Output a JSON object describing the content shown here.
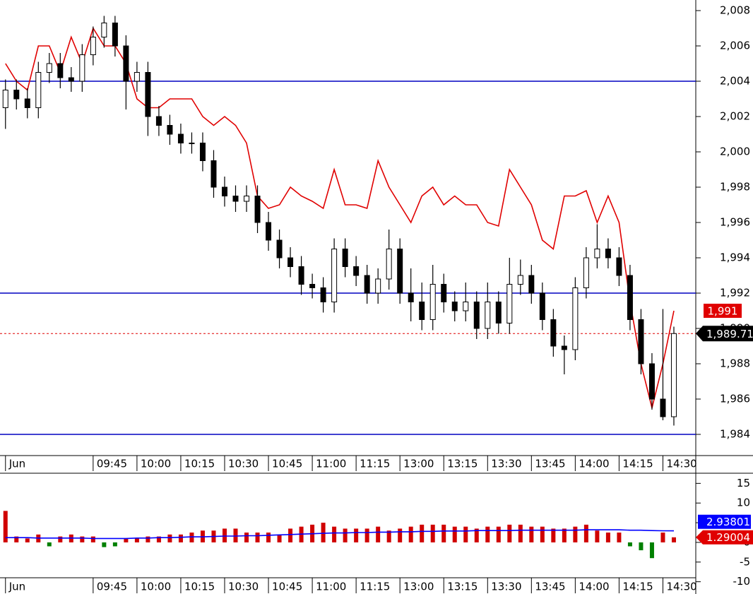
{
  "chart_data": [
    {
      "type": "candlestick",
      "categories": [
        "Jun",
        null,
        null,
        null,
        null,
        null,
        null,
        null,
        "09:45",
        null,
        null,
        null,
        "10:00",
        null,
        null,
        null,
        "10:15",
        null,
        null,
        null,
        "10:30",
        null,
        null,
        null,
        "10:45",
        null,
        null,
        null,
        "11:00",
        null,
        null,
        null,
        "11:15",
        null,
        null,
        null,
        "13:00",
        null,
        null,
        null,
        "13:15",
        null,
        null,
        null,
        "13:30",
        null,
        null,
        null,
        "13:45",
        null,
        null,
        null,
        "14:00",
        null,
        null,
        null,
        "14:15",
        null,
        null,
        null,
        "14:30",
        null
      ],
      "open": [
        2002.5,
        2003.5,
        2003,
        2002.5,
        2004.5,
        2005,
        2004.2,
        2004,
        2005.5,
        2006.5,
        2007.3,
        2006,
        2004,
        2004.5,
        2002,
        2001.5,
        2001,
        2000.5,
        2000.5,
        1999.5,
        1998,
        1997.5,
        1997.2,
        1997.5,
        1996,
        1995,
        1994,
        1993.5,
        1992.5,
        1992.3,
        1991.5,
        1994.5,
        1993.5,
        1993,
        1992,
        1992.8,
        1994.5,
        1992,
        1991.5,
        1990.5,
        1992.5,
        1991.5,
        1991,
        1991.5,
        1990,
        1991.5,
        1990.3,
        1992.5,
        1993,
        1992,
        1990.5,
        1989,
        1988.8,
        1992.3,
        1994,
        1994.5,
        1994,
        1993,
        1990.5,
        1988,
        1986,
        1985
      ],
      "high": [
        2004.1,
        2004.1,
        2003.6,
        2005.1,
        2005.6,
        2005.6,
        2004.8,
        2006.1,
        2007.1,
        2007.7,
        2007.7,
        2006.6,
        2005.1,
        2005.1,
        2002.6,
        2002.1,
        2001.6,
        2001.1,
        2001.1,
        2000.1,
        1998.6,
        1998.1,
        1998.1,
        1998.1,
        1996.6,
        1995.6,
        1994.6,
        1994.1,
        1993.1,
        1992.9,
        1995.1,
        1995.1,
        1994.1,
        1993.6,
        1993.4,
        1995.6,
        1995.1,
        1993.4,
        1992.6,
        1993.6,
        1993.1,
        1992.1,
        1992.6,
        1992.1,
        1992.6,
        1992.1,
        1994,
        1993.9,
        1993.6,
        1992.6,
        1991.1,
        1989.6,
        1992.9,
        1994.6,
        1995.9,
        1995.1,
        1994.6,
        1993.6,
        1991.1,
        1988.6,
        1991.1,
        1990.1
      ],
      "low": [
        2001.3,
        2002.4,
        2001.9,
        2001.9,
        2003.9,
        2003.6,
        2003.4,
        2003.4,
        2004.9,
        2005.9,
        2005.4,
        2002.4,
        2003.4,
        2000.9,
        2000.9,
        2000.4,
        1999.9,
        1999.9,
        1998.9,
        1997.4,
        1996.9,
        1996.6,
        1996.6,
        1995.4,
        1994.4,
        1993.4,
        1992.9,
        1991.9,
        1991.7,
        1990.9,
        1990.9,
        1992.9,
        1992.4,
        1991.4,
        1991.4,
        1992.2,
        1991.4,
        1990.4,
        1989.9,
        1989.9,
        1990.9,
        1990.4,
        1990.4,
        1989.4,
        1989.4,
        1989.7,
        1989.7,
        1991.9,
        1991.4,
        1989.9,
        1988.4,
        1987.4,
        1988.2,
        1991.7,
        1993.4,
        1993.4,
        1992.4,
        1989.9,
        1987.4,
        1985.4,
        1984.8,
        1984.5
      ],
      "close": [
        2003.5,
        2003,
        2002.5,
        2004.5,
        2005,
        2004.2,
        2004,
        2005.5,
        2006.5,
        2007.3,
        2006,
        2004,
        2004.5,
        2002,
        2001.5,
        2001,
        2000.5,
        2000.5,
        1999.5,
        1998,
        1997.5,
        1997.2,
        1997.5,
        1996,
        1995,
        1994,
        1993.5,
        1992.5,
        1992.3,
        1991.5,
        1994.5,
        1993.5,
        1993,
        1992,
        1992.8,
        1994.5,
        1992,
        1991.5,
        1990.5,
        1992.5,
        1991.5,
        1991,
        1991.5,
        1990,
        1991.5,
        1990.3,
        1992.5,
        1993,
        1992,
        1990.5,
        1989,
        1988.8,
        1992.3,
        1994,
        1994.5,
        1994,
        1993,
        1990.5,
        1988,
        1986,
        1985,
        1989.71
      ],
      "close_last_label": "1,989.71",
      "color": "#000000",
      "line": {
        "color": "#e00000",
        "last_label": "1,991",
        "values": [
          2005,
          2004,
          2003.5,
          2006,
          2006,
          2004.5,
          2006.5,
          2005,
          2007,
          2006,
          2006,
          2005,
          2003,
          2002.5,
          2002.5,
          2003,
          2003,
          2003,
          2002,
          2001.5,
          2002,
          2001.5,
          2000.5,
          1997.5,
          1996.8,
          1997,
          1998,
          1997.5,
          1997.2,
          1996.8,
          1999,
          1997,
          1997,
          1996.8,
          1999.5,
          1998,
          1997,
          1996,
          1997.5,
          1998,
          1997,
          1997.5,
          1997,
          1997,
          1996,
          1995.8,
          1999,
          1998,
          1997,
          1995,
          1994.5,
          1997.5,
          1997.5,
          1997.8,
          1996,
          1997.5,
          1996,
          1991.5,
          1988,
          1985.5,
          1988,
          1991
        ]
      },
      "hlines": {
        "color": "#0000c0",
        "values": [
          2004,
          1992,
          1984
        ]
      },
      "ylim": [
        1982.8,
        2008.6
      ],
      "yticks": [
        {
          "value": 2008,
          "label": "2,008"
        },
        {
          "value": 2006,
          "label": "2,006"
        },
        {
          "value": 2004,
          "label": "2,004"
        },
        {
          "value": 2002,
          "label": "2,002"
        },
        {
          "value": 2000,
          "label": "2,000"
        },
        {
          "value": 1998,
          "label": "1,998"
        },
        {
          "value": 1996,
          "label": "1,996"
        },
        {
          "value": 1994,
          "label": "1,994"
        },
        {
          "value": 1992,
          "label": "1,992"
        },
        {
          "value": 1990,
          "label": "1,990"
        },
        {
          "value": 1988,
          "label": "1,988"
        },
        {
          "value": 1986,
          "label": "1,986"
        },
        {
          "value": 1984,
          "label": "1,984"
        }
      ]
    },
    {
      "type": "bar",
      "categories": [
        "Jun",
        null,
        null,
        null,
        null,
        null,
        null,
        null,
        "09:45",
        null,
        null,
        null,
        "10:00",
        null,
        null,
        null,
        "10:15",
        null,
        null,
        null,
        "10:30",
        null,
        null,
        null,
        "10:45",
        null,
        null,
        null,
        "11:00",
        null,
        null,
        null,
        "11:15",
        null,
        null,
        null,
        "13:00",
        null,
        null,
        null,
        "13:15",
        null,
        null,
        null,
        "13:30",
        null,
        null,
        null,
        "13:45",
        null,
        null,
        null,
        "14:00",
        null,
        null,
        null,
        "14:15",
        null,
        null,
        null,
        "14:30",
        null
      ],
      "values": [
        8,
        1.5,
        1,
        2,
        -1,
        1.5,
        2,
        1.5,
        1.5,
        -1.2,
        -1,
        1,
        1,
        1.5,
        1.5,
        2,
        2,
        2.5,
        3,
        3,
        3.5,
        3.5,
        2.5,
        2.5,
        2.5,
        2,
        3.5,
        4,
        4.5,
        5,
        4,
        3.5,
        3.5,
        3.5,
        4,
        3,
        3.5,
        4,
        4.5,
        4.5,
        4.5,
        4,
        4,
        3.5,
        4,
        4,
        4.5,
        4.5,
        4,
        4,
        3.5,
        3.5,
        4,
        4.5,
        3,
        2.5,
        2.5,
        -1,
        -2,
        -4,
        2.5,
        1.29004
      ],
      "positive_color": "#d00000",
      "negative_color": "#008000",
      "line": {
        "color": "#0000ff",
        "values": [
          1.2,
          1.2,
          1.2,
          1.1,
          1.1,
          1.1,
          1.1,
          1.1,
          1.0,
          1.0,
          1.0,
          1.0,
          1.1,
          1.1,
          1.2,
          1.2,
          1.3,
          1.4,
          1.4,
          1.5,
          1.6,
          1.6,
          1.7,
          1.7,
          1.8,
          1.9,
          2.0,
          2.1,
          2.2,
          2.3,
          2.4,
          2.4,
          2.5,
          2.5,
          2.6,
          2.6,
          2.7,
          2.7,
          2.8,
          2.8,
          2.9,
          2.9,
          2.9,
          3.0,
          3.0,
          3.0,
          3.0,
          3.1,
          3.1,
          3.1,
          3.1,
          3.1,
          3.1,
          3.2,
          3.2,
          3.2,
          3.2,
          3.1,
          3.1,
          3.0,
          2.95,
          2.93801
        ]
      },
      "ylim": [
        -11.5,
        16.5
      ],
      "yticks": [
        15,
        10,
        5,
        0,
        -5,
        -10
      ]
    }
  ]
}
